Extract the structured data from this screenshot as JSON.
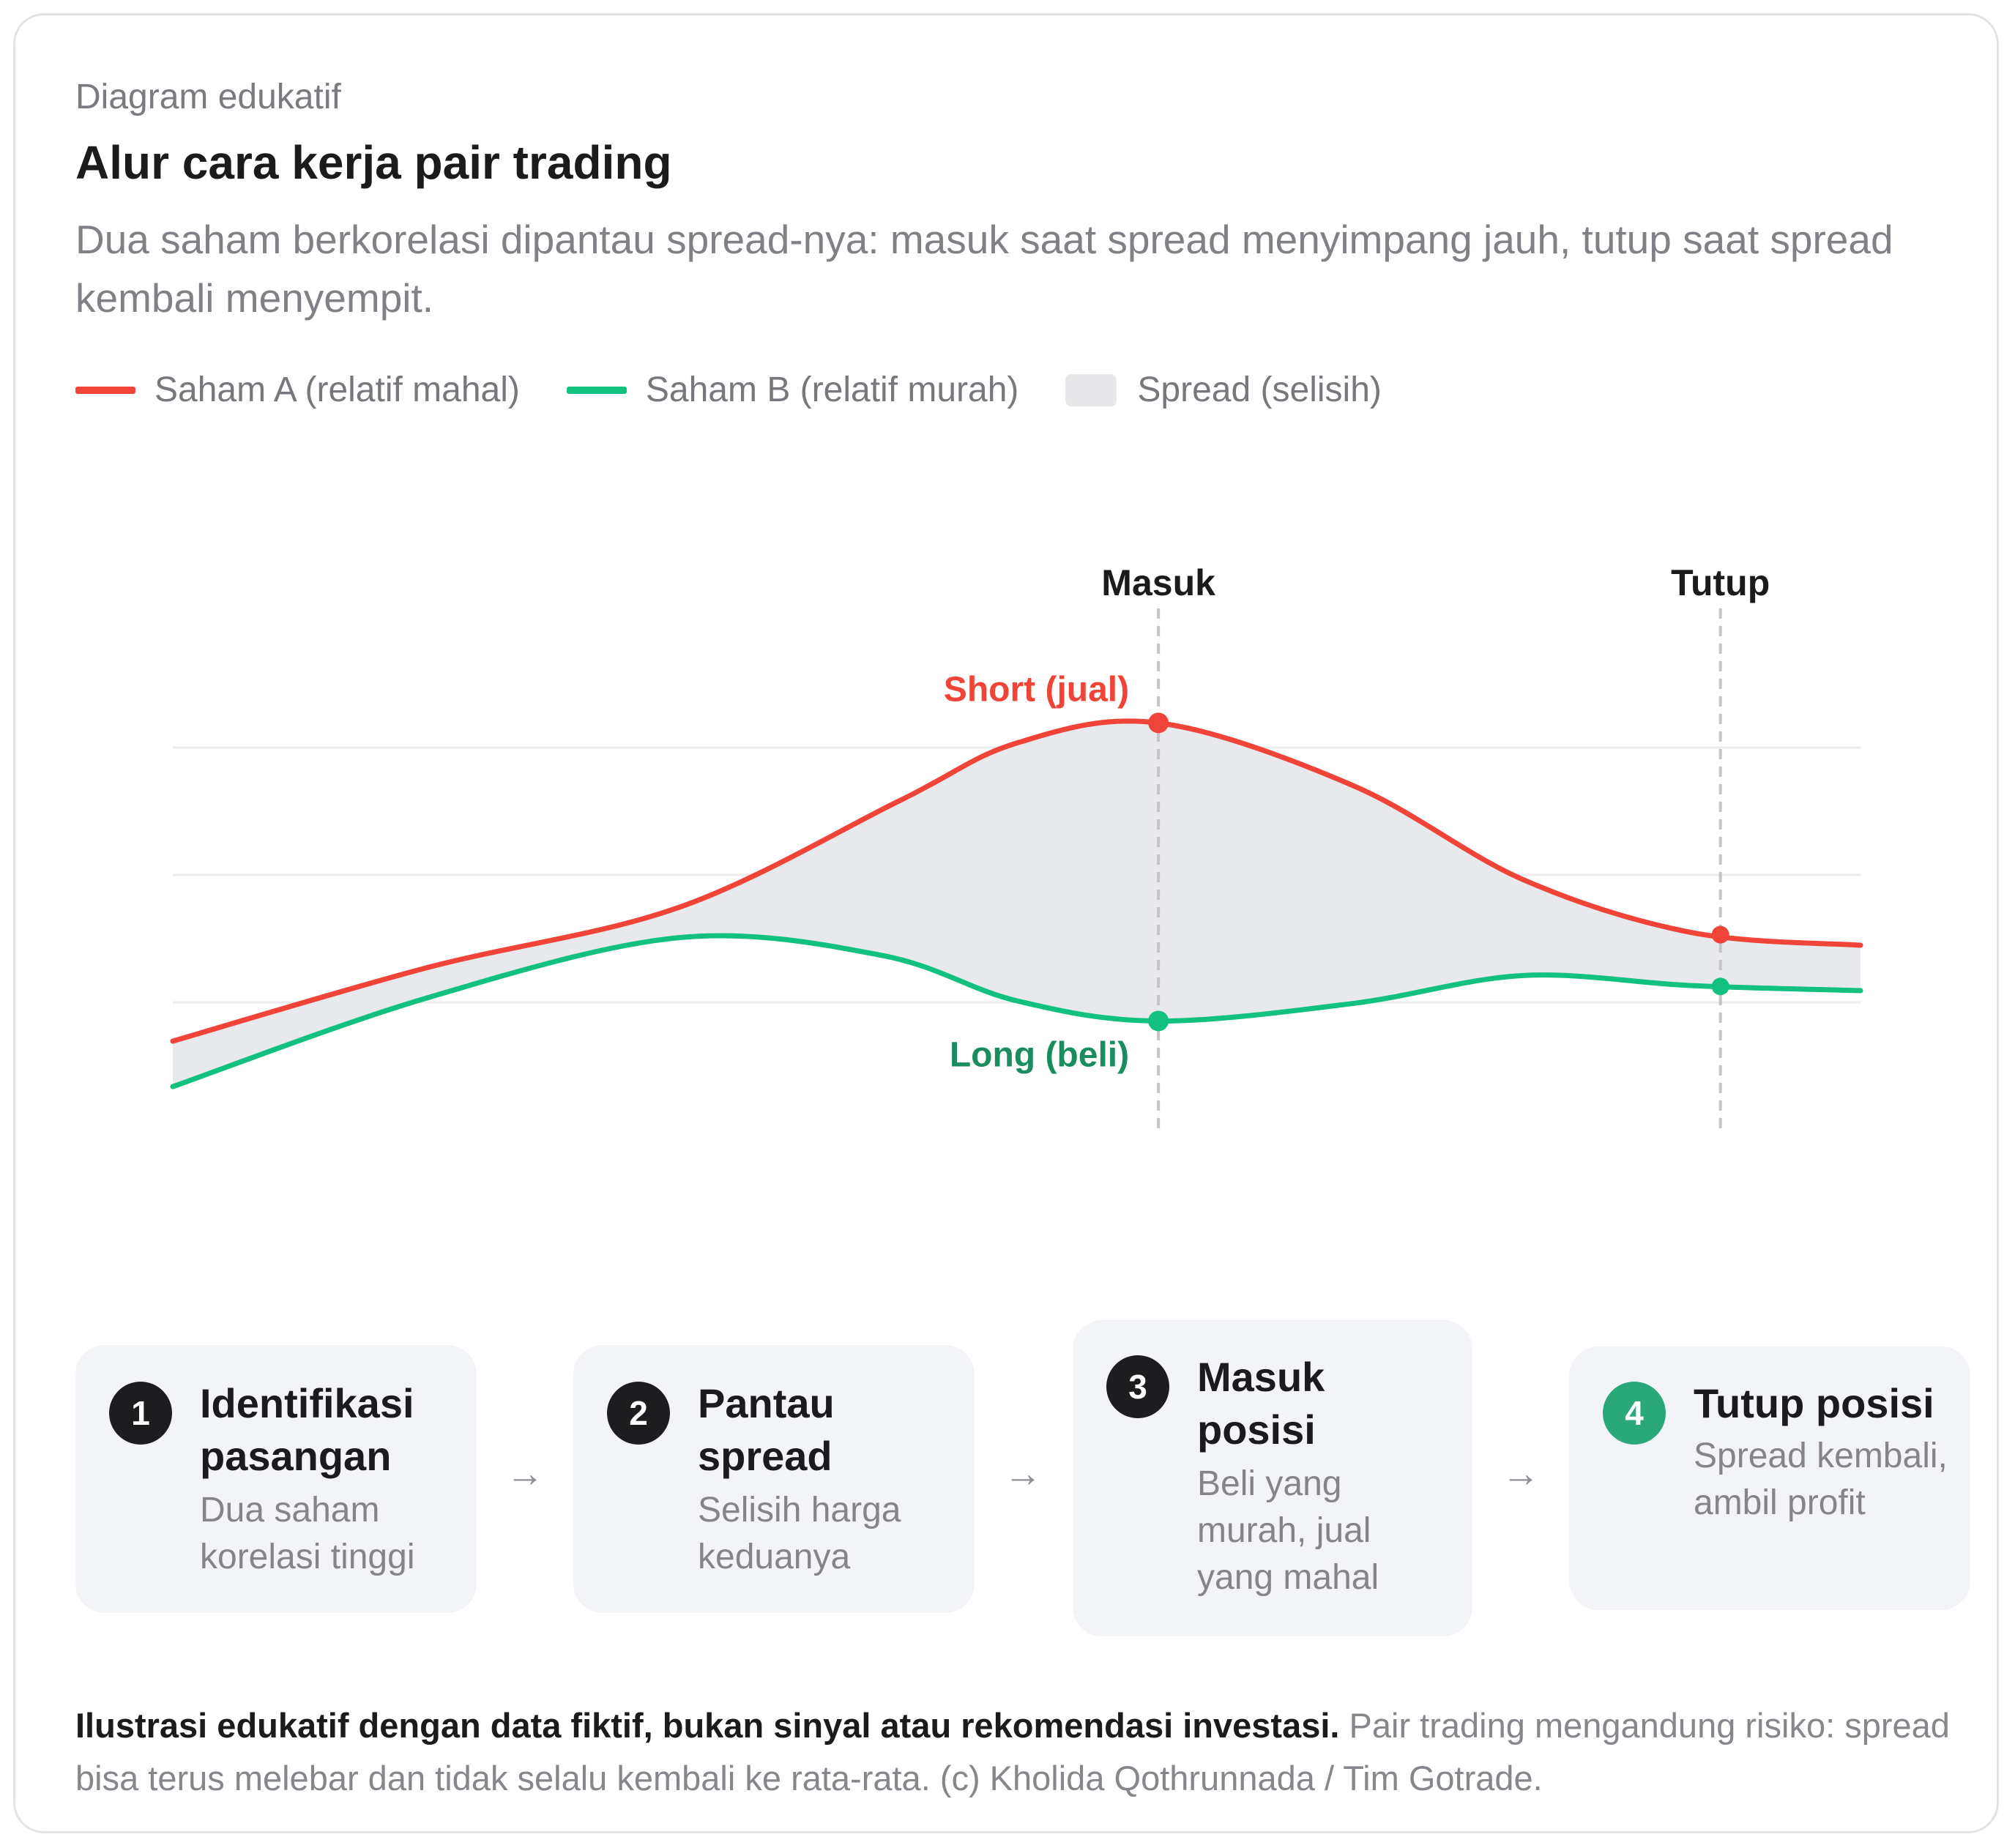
{
  "header": {
    "eyebrow": "Diagram edukatif",
    "title": "Alur cara kerja pair trading",
    "subtitle": "Dua saham berkorelasi dipantau spread-nya: masuk saat spread menyimpang jauh, tutup saat spread kembali menyempit."
  },
  "legend": {
    "items": [
      {
        "label": "Saham A (relatif mahal)",
        "color": "#f04438",
        "kind": "line"
      },
      {
        "label": "Saham B (relatif murah)",
        "color": "#12c07f",
        "kind": "line"
      },
      {
        "label": "Spread (selisih)",
        "color": "#e8e8ea",
        "kind": "area"
      }
    ]
  },
  "diagram": {
    "markers": {
      "entry": "Masuk",
      "exit": "Tutup"
    },
    "annotations": {
      "short": "Short (jual)",
      "long": "Long (beli)"
    },
    "colors": {
      "stock_a": "#f04438",
      "stock_b": "#12c07f",
      "spread": "#e8e9ec",
      "long_label": "#1a8c5f",
      "guide": "#c4c4c8",
      "grid": "#ececee"
    },
    "stock_a": [
      [
        0,
        1.1
      ],
      [
        1.5,
        4.0
      ],
      [
        3.0,
        6.4
      ],
      [
        4.3,
        10.6
      ],
      [
        5.0,
        12.9
      ],
      [
        5.84,
        13.7
      ],
      [
        7.0,
        11.2
      ],
      [
        8.0,
        7.5
      ],
      [
        9.0,
        5.4
      ],
      [
        10.0,
        4.9
      ]
    ],
    "stock_b": [
      [
        0,
        -0.7
      ],
      [
        1.5,
        2.8
      ],
      [
        3.0,
        5.2
      ],
      [
        4.2,
        4.5
      ],
      [
        5.0,
        2.7
      ],
      [
        5.84,
        1.9
      ],
      [
        7.0,
        2.6
      ],
      [
        8.0,
        3.7
      ],
      [
        9.0,
        3.3
      ],
      [
        10.0,
        3.1
      ]
    ],
    "entry_x": 5.84,
    "exit_x": 9.17
  },
  "steps": [
    {
      "number": "1",
      "title": "Identifikasi pasangan",
      "desc": "Dua saham korelasi tinggi"
    },
    {
      "number": "2",
      "title": "Pantau spread",
      "desc": "Selisih harga keduanya"
    },
    {
      "number": "3",
      "title": "Masuk posisi",
      "desc": "Beli yang murah, jual yang mahal"
    },
    {
      "number": "4",
      "title": "Tutup posisi",
      "desc": "Spread kembali, ambil profit"
    }
  ],
  "arrow": "→",
  "footnote": {
    "bold": "Ilustrasi edukatif dengan data fiktif, bukan sinyal atau rekomendasi investasi.",
    "text": " Pair trading mengandung risiko: spread bisa terus melebar dan tidak selalu kembali ke rata-rata. (c) Kholida Qothrunnada / Tim Gotrade."
  }
}
